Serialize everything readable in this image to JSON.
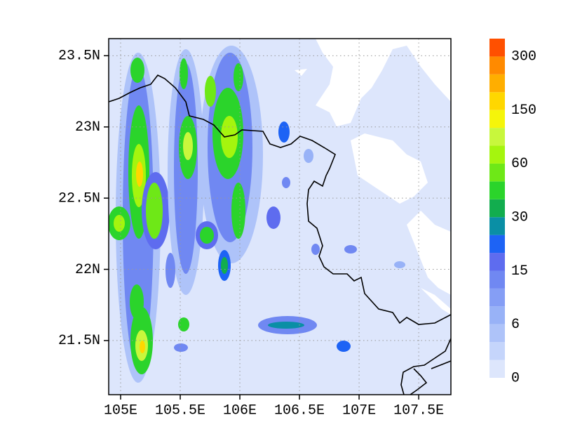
{
  "map": {
    "lon_range": [
      104.9,
      107.77
    ],
    "lat_range": [
      21.12,
      23.62
    ],
    "x_axis": {
      "ticks": [
        {
          "value": 105,
          "label": "105E"
        },
        {
          "value": 105.5,
          "label": "105.5E"
        },
        {
          "value": 106,
          "label": "106E"
        },
        {
          "value": 106.5,
          "label": "106.5E"
        },
        {
          "value": 107,
          "label": "107E"
        },
        {
          "value": 107.5,
          "label": "107.5E"
        }
      ]
    },
    "y_axis": {
      "ticks": [
        {
          "value": 21.5,
          "label": "21.5N"
        },
        {
          "value": 22,
          "label": "22N"
        },
        {
          "value": 22.5,
          "label": "22.5N"
        },
        {
          "value": 23,
          "label": "23N"
        },
        {
          "value": 23.5,
          "label": "23.5N"
        }
      ]
    },
    "grid": true,
    "colorbar": {
      "colors": [
        "#dde6fc",
        "#c5d5fb",
        "#aec3f9",
        "#98b2f7",
        "#859ef5",
        "#7088f2",
        "#5e6cef",
        "#1d63f5",
        "#0a8fa5",
        "#12ad4e",
        "#2bd42b",
        "#6ee817",
        "#a5f50e",
        "#c8f73c",
        "#f5f50a",
        "#ffd700",
        "#ffae00",
        "#ff8a00",
        "#ff5000"
      ],
      "labels": [
        0,
        6,
        15,
        30,
        60,
        150,
        300
      ]
    }
  }
}
